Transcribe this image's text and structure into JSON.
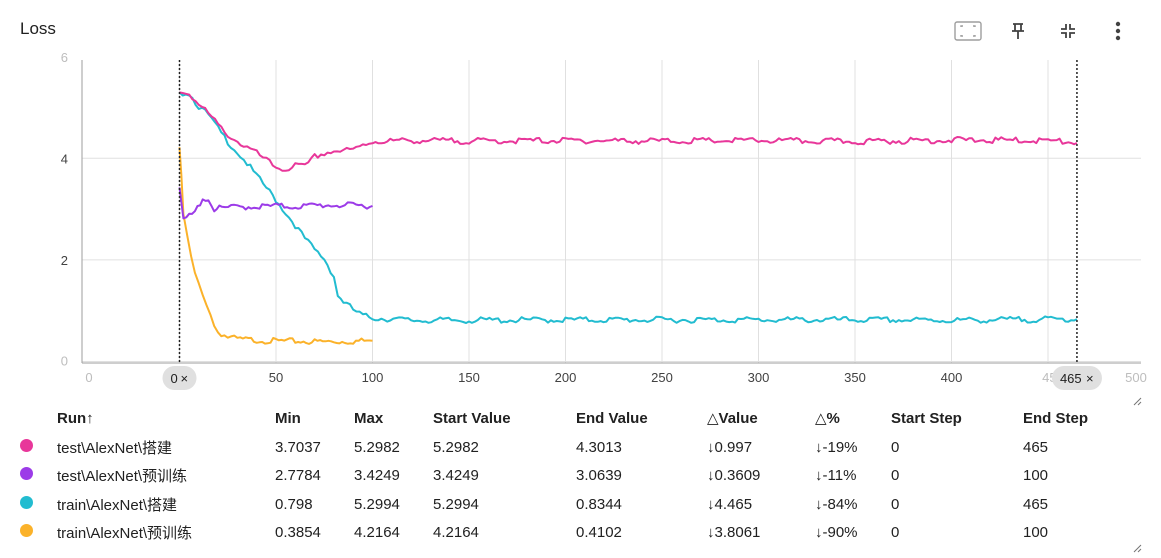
{
  "header": {
    "title": "Loss",
    "icons": [
      "fit-domain-icon",
      "pin-icon",
      "collapse-icon",
      "more-vert-icon"
    ]
  },
  "chart_data": {
    "type": "line",
    "title": "Loss",
    "xlim": [
      0,
      500
    ],
    "ylim": [
      0,
      6
    ],
    "x_ticks": [
      0,
      50,
      100,
      150,
      200,
      250,
      300,
      350,
      400,
      450,
      500
    ],
    "y_ticks": [
      0,
      2,
      4,
      6
    ],
    "x_range_markers": [
      0,
      465
    ],
    "series": [
      {
        "name": "test\\AlexNet\\搭建",
        "color": "#e8379a",
        "x": [
          0,
          5,
          10,
          15,
          20,
          25,
          30,
          35,
          40,
          45,
          50,
          55,
          60,
          65,
          70,
          75,
          80,
          85,
          90,
          95,
          100,
          120,
          150,
          200,
          250,
          300,
          350,
          400,
          450,
          465
        ],
        "y": [
          5.2982,
          5.28,
          5.05,
          4.88,
          4.65,
          4.47,
          4.33,
          4.21,
          4.1,
          3.96,
          3.82,
          3.78,
          3.86,
          3.83,
          4.03,
          4.1,
          4.14,
          4.15,
          4.16,
          4.26,
          4.33,
          4.35,
          4.34,
          4.35,
          4.34,
          4.35,
          4.33,
          4.36,
          4.35,
          4.3013
        ]
      },
      {
        "name": "test\\AlexNet\\预训练",
        "color": "#9c3be8",
        "x": [
          0,
          2,
          5,
          8,
          12,
          15,
          18,
          22,
          30,
          40,
          50,
          60,
          70,
          80,
          90,
          100
        ],
        "y": [
          3.4249,
          2.78,
          2.86,
          2.93,
          3.22,
          3.18,
          3.0,
          3.02,
          3.04,
          3.05,
          3.06,
          3.05,
          3.07,
          3.08,
          3.07,
          3.0639
        ]
      },
      {
        "name": "train\\AlexNet\\搭建",
        "color": "#22bcd0",
        "x": [
          0,
          5,
          10,
          15,
          20,
          25,
          30,
          35,
          40,
          45,
          50,
          55,
          60,
          65,
          70,
          75,
          80,
          82,
          85,
          90,
          95,
          100,
          120,
          150,
          200,
          250,
          300,
          350,
          400,
          450,
          465
        ],
        "y": [
          5.2994,
          5.28,
          5.02,
          4.85,
          4.58,
          4.33,
          4.12,
          3.9,
          3.65,
          3.42,
          3.18,
          2.93,
          2.68,
          2.42,
          2.2,
          2.02,
          1.68,
          1.3,
          1.18,
          1.02,
          0.9,
          0.86,
          0.81,
          0.81,
          0.82,
          0.82,
          0.82,
          0.82,
          0.81,
          0.83,
          0.8344
        ]
      },
      {
        "name": "train\\AlexNet\\预训练",
        "color": "#fbb22a",
        "x": [
          0,
          1,
          2,
          4,
          6,
          8,
          10,
          12,
          14,
          16,
          18,
          20,
          25,
          30,
          40,
          50,
          60,
          70,
          80,
          90,
          100
        ],
        "y": [
          4.2164,
          3.6,
          2.9,
          2.45,
          2.05,
          1.72,
          1.5,
          1.3,
          1.15,
          0.95,
          0.7,
          0.58,
          0.48,
          0.44,
          0.42,
          0.4,
          0.4,
          0.39,
          0.39,
          0.4,
          0.4102
        ]
      }
    ]
  },
  "chips": {
    "left": "0",
    "right": "465",
    "close": "×"
  },
  "table": {
    "columns": [
      "Run↑",
      "Min",
      "Max",
      "Start Value",
      "End Value",
      "△Value",
      "△%",
      "Start Step",
      "End Step"
    ],
    "rows": [
      {
        "color": "#e8379a",
        "run": "test\\AlexNet\\搭建",
        "min": "3.7037",
        "max": "5.2982",
        "start": "5.2982",
        "end": "4.3013",
        "dvalue": "↓0.997",
        "dpct": "↓-19%",
        "start_step": "0",
        "end_step": "465"
      },
      {
        "color": "#9c3be8",
        "run": "test\\AlexNet\\预训练",
        "min": "2.7784",
        "max": "3.4249",
        "start": "3.4249",
        "end": "3.0639",
        "dvalue": "↓0.3609",
        "dpct": "↓-11%",
        "start_step": "0",
        "end_step": "100"
      },
      {
        "color": "#22bcd0",
        "run": "train\\AlexNet\\搭建",
        "min": "0.798",
        "max": "5.2994",
        "start": "5.2994",
        "end": "0.8344",
        "dvalue": "↓4.465",
        "dpct": "↓-84%",
        "start_step": "0",
        "end_step": "465"
      },
      {
        "color": "#fbb22a",
        "run": "train\\AlexNet\\预训练",
        "min": "0.3854",
        "max": "4.2164",
        "start": "4.2164",
        "end": "0.4102",
        "dvalue": "↓3.8061",
        "dpct": "↓-90%",
        "start_step": "0",
        "end_step": "100"
      }
    ]
  }
}
